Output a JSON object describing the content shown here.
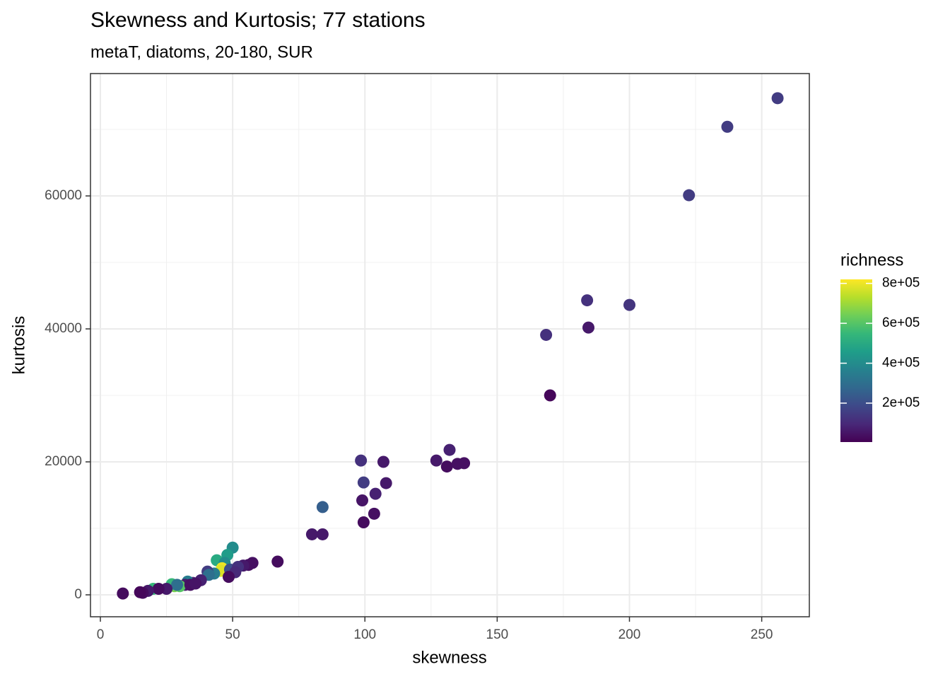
{
  "chart_data": {
    "type": "scatter",
    "title": "Skewness and Kurtosis; 77 stations",
    "subtitle": "metaT, diatoms, 20-180, SUR",
    "x_label": "skewness",
    "y_label": "kurtosis",
    "legend_title": "richness",
    "colorscale": [
      "#440154",
      "#482878",
      "#3e4989",
      "#31688e",
      "#26828e",
      "#1f9e89",
      "#35b779",
      "#6ece58",
      "#b5de2b",
      "#fde725"
    ],
    "clim": [
      5000,
      820000
    ],
    "cticks": [
      {
        "value": 200000,
        "label": "2e+05"
      },
      {
        "value": 400000,
        "label": "4e+05"
      },
      {
        "value": 600000,
        "label": "6e+05"
      },
      {
        "value": 800000,
        "label": "8e+05"
      }
    ],
    "xlim": [
      -3.74,
      268
    ],
    "ylim": [
      -3298,
      78404
    ],
    "xticks": [
      0,
      50,
      100,
      150,
      200,
      250
    ],
    "yticks": [
      0,
      20000,
      40000,
      60000
    ],
    "x_minor_ticks": [
      25,
      75,
      125,
      175,
      225
    ],
    "y_minor_ticks": [
      10000,
      30000,
      50000,
      70000
    ],
    "grid": true,
    "x": [
      256,
      237,
      222.5,
      184,
      200,
      168.5,
      184.5,
      170,
      98.5,
      107,
      127,
      132,
      131,
      135,
      137.5,
      99.5,
      108,
      104,
      99,
      84,
      103.5,
      99.5,
      80,
      84,
      67,
      57.5,
      56,
      54,
      50,
      48,
      44,
      47,
      46,
      45.5,
      49,
      52,
      51,
      48.5,
      43,
      40.5,
      41,
      38,
      35,
      33,
      32,
      30,
      28,
      27,
      29,
      25,
      20,
      22,
      18,
      16,
      15,
      8.5,
      34,
      36
    ],
    "y": [
      74700,
      70400,
      60100,
      44300,
      43600,
      39100,
      40200,
      30000,
      20200,
      20000,
      20200,
      21800,
      19300,
      19700,
      19800,
      16900,
      16800,
      15200,
      14200,
      13200,
      12200,
      10900,
      9100,
      9100,
      5000,
      4800,
      4500,
      4400,
      7100,
      6000,
      5200,
      4800,
      4000,
      3600,
      3800,
      4200,
      3400,
      2700,
      3200,
      3500,
      3000,
      2200,
      1800,
      2000,
      1500,
      1300,
      1300,
      1600,
      1500,
      900,
      900,
      900,
      600,
      300,
      400,
      200,
      1500,
      1700
    ],
    "richness": [
      150000,
      150000,
      150000,
      120000,
      130000,
      120000,
      60000,
      20000,
      120000,
      60000,
      60000,
      80000,
      30000,
      40000,
      40000,
      150000,
      60000,
      80000,
      50000,
      250000,
      40000,
      30000,
      60000,
      60000,
      30000,
      40000,
      40000,
      60000,
      400000,
      450000,
      500000,
      400000,
      800000,
      780000,
      200000,
      120000,
      100000,
      30000,
      350000,
      150000,
      300000,
      80000,
      100000,
      350000,
      60000,
      600000,
      650000,
      550000,
      300000,
      60000,
      550000,
      30000,
      60000,
      30000,
      20000,
      30000,
      40000,
      50000
    ]
  }
}
